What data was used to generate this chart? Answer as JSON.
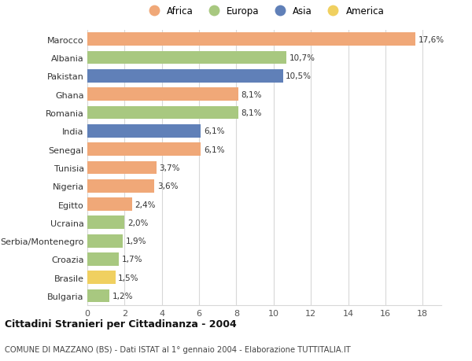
{
  "categories": [
    "Marocco",
    "Albania",
    "Pakistan",
    "Ghana",
    "Romania",
    "India",
    "Senegal",
    "Tunisia",
    "Nigeria",
    "Egitto",
    "Ucraina",
    "Serbia/Montenegro",
    "Croazia",
    "Brasile",
    "Bulgaria"
  ],
  "values": [
    17.6,
    10.7,
    10.5,
    8.1,
    8.1,
    6.1,
    6.1,
    3.7,
    3.6,
    2.4,
    2.0,
    1.9,
    1.7,
    1.5,
    1.2
  ],
  "labels": [
    "17,6%",
    "10,7%",
    "10,5%",
    "8,1%",
    "8,1%",
    "6,1%",
    "6,1%",
    "3,7%",
    "3,6%",
    "2,4%",
    "2,0%",
    "1,9%",
    "1,7%",
    "1,5%",
    "1,2%"
  ],
  "continents": [
    "Africa",
    "Europa",
    "Asia",
    "Africa",
    "Europa",
    "Asia",
    "Africa",
    "Africa",
    "Africa",
    "Africa",
    "Europa",
    "Europa",
    "Europa",
    "America",
    "Europa"
  ],
  "continent_colors": {
    "Africa": "#F0A878",
    "Europa": "#A8C880",
    "Asia": "#6080B8",
    "America": "#F0D060"
  },
  "legend_order": [
    "Africa",
    "Europa",
    "Asia",
    "America"
  ],
  "title": "Cittadini Stranieri per Cittadinanza - 2004",
  "subtitle": "COMUNE DI MAZZANO (BS) - Dati ISTAT al 1° gennaio 2004 - Elaborazione TUTTITALIA.IT",
  "xlim": [
    0,
    19
  ],
  "xticks": [
    0,
    2,
    4,
    6,
    8,
    10,
    12,
    14,
    16,
    18
  ],
  "background_color": "#ffffff",
  "grid_color": "#d8d8d8"
}
